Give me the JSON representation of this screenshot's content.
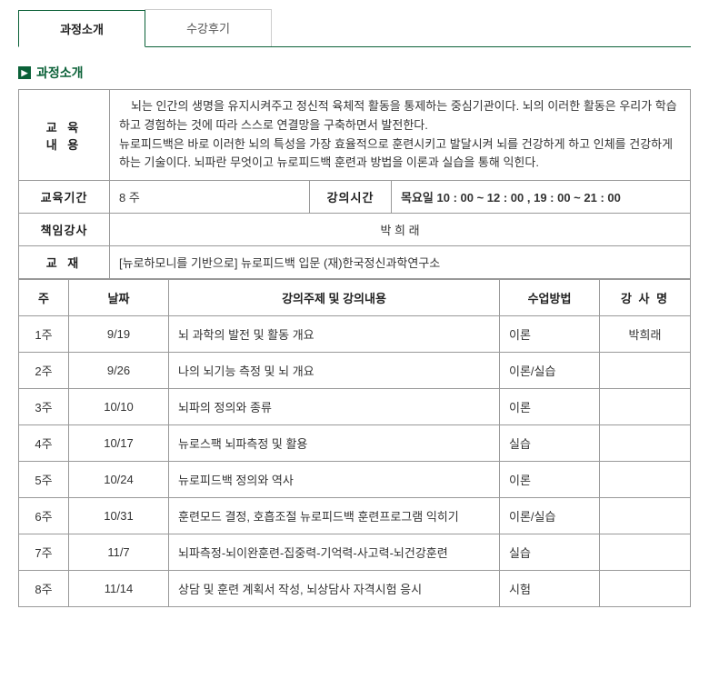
{
  "tabs": {
    "intro": "과정소개",
    "review": "수강후기"
  },
  "section_title": "과정소개",
  "info": {
    "labels": {
      "content": "교 육\n내 용",
      "period": "교육기간",
      "time": "강의시간",
      "instructor": "책임강사",
      "textbook": "교 재"
    },
    "content_p1": "뇌는 인간의 생명을 유지시켜주고 정신적 육체적 활동을 통제하는 중심기관이다. 뇌의 이러한 활동은 우리가 학습하고 경험하는 것에 따라 스스로 연결망을 구축하면서 발전한다.",
    "content_p2": "뉴로피드백은 바로 이러한 뇌의 특성을 가장 효율적으로 훈련시키고 발달시켜 뇌를 건강하게 하고 인체를 건강하게 하는 기술이다. 뇌파란 무엇이고 뉴로피드백 훈련과 방법을 이론과 실습을 통해 익힌다.",
    "period": "8 주",
    "time": "목요일 10 : 00 ~ 12 : 00 , 19 : 00 ~ 21 : 00",
    "instructor": "박 희 래",
    "textbook": "[뉴로하모니를 기반으로] 뉴로피드백 입문 (재)한국정신과학연구소"
  },
  "schedule": {
    "headers": {
      "week": "주",
      "date": "날짜",
      "topic": "강의주제 및 강의내용",
      "method": "수업방법",
      "instructor": "강 사 명"
    },
    "rows": [
      {
        "week": "1주",
        "date": "9/19",
        "topic": "뇌 과학의 발전 및 활동 개요",
        "method": "이론",
        "instructor": "박희래"
      },
      {
        "week": "2주",
        "date": "9/26",
        "topic": "나의 뇌기능 측정 및 뇌 개요",
        "method": "이론/실습",
        "instructor": ""
      },
      {
        "week": "3주",
        "date": "10/10",
        "topic": "뇌파의 정의와 종류",
        "method": "이론",
        "instructor": ""
      },
      {
        "week": "4주",
        "date": "10/17",
        "topic": "뉴로스팩 뇌파측정 및 활용",
        "method": "실습",
        "instructor": ""
      },
      {
        "week": "5주",
        "date": "10/24",
        "topic": "뉴로피드백 정의와 역사",
        "method": "이론",
        "instructor": ""
      },
      {
        "week": "6주",
        "date": "10/31",
        "topic": "훈련모드 결정, 호흡조절 뉴로피드백 훈련프로그램 익히기",
        "method": "이론/실습",
        "instructor": ""
      },
      {
        "week": "7주",
        "date": "11/7",
        "topic": "뇌파측정-뇌이완훈련-집중력-기억력-사고력-뇌건강훈련",
        "method": "실습",
        "instructor": ""
      },
      {
        "week": "8주",
        "date": "11/14",
        "topic": "상담 및 훈련 계획서 작성, 뇌상담사 자격시험 응시",
        "method": "시험",
        "instructor": ""
      }
    ]
  },
  "colors": {
    "accent": "#0b6138",
    "border": "#999999",
    "tab_border": "#cccccc",
    "text": "#333333"
  }
}
